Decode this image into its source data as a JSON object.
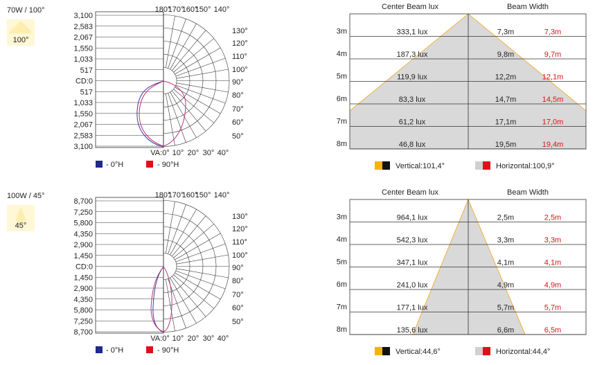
{
  "panels": [
    {
      "label": "70W / 100°",
      "badge": "100°",
      "polar": {
        "scale": [
          "3,100",
          "2,583",
          "2,067",
          "1,550",
          "1,033",
          "517",
          "CD:0",
          "517",
          "1,033",
          "1,550",
          "2,067",
          "2,583",
          "3,100"
        ],
        "top_labels": [
          "180°",
          "170°",
          "160°",
          "150°",
          "140°"
        ],
        "right_labels": [
          "130°",
          "120°",
          "110°",
          "100°",
          "90°",
          "80°",
          "70°",
          "60°",
          "50°"
        ],
        "bottom_labels": [
          "VA:0°",
          "10°",
          "20°",
          "30°",
          "40°"
        ],
        "legend": [
          "- 0°H",
          "- 90°H"
        ]
      },
      "table": {
        "headers": [
          "Center Beam lux",
          "Beam Width"
        ],
        "rows": [
          [
            "3m",
            "333,1 lux",
            "7,3m",
            "7,3m"
          ],
          [
            "4m",
            "187,3 lux",
            "9,8m",
            "9,7m"
          ],
          [
            "5m",
            "119,9 lux",
            "12,2m",
            "12,1m"
          ],
          [
            "6m",
            "83,3 lux",
            "14,7m",
            "14,5m"
          ],
          [
            "7m",
            "61,2 lux",
            "17,1m",
            "17,0m"
          ],
          [
            "8m",
            "46,8 lux",
            "19,5m",
            "19,4m"
          ]
        ],
        "legend": [
          "Vertical:101,4°",
          "Horizontal:100,9°"
        ]
      }
    },
    {
      "label": "100W / 45°",
      "badge": "45°",
      "polar": {
        "scale": [
          "8,700",
          "7,250",
          "5,800",
          "4,350",
          "2,900",
          "1,450",
          "CD:0",
          "1,450",
          "2,900",
          "4,350",
          "5,800",
          "7,250",
          "8,700"
        ],
        "top_labels": [
          "180°",
          "170°",
          "160°",
          "150°",
          "140°"
        ],
        "right_labels": [
          "130°",
          "120°",
          "110°",
          "100°",
          "90°",
          "80°",
          "70°",
          "60°",
          "50°"
        ],
        "bottom_labels": [
          "VA:0°",
          "10°",
          "20°",
          "30°",
          "40°"
        ],
        "legend": [
          "- 0°H",
          "- 90°H"
        ]
      },
      "table": {
        "headers": [
          "Center Beam lux",
          "Beam Width"
        ],
        "rows": [
          [
            "3m",
            "964,1 lux",
            "2,5m",
            "2,5m"
          ],
          [
            "4m",
            "542,3 lux",
            "3,3m",
            "3,3m"
          ],
          [
            "5m",
            "347,1 lux",
            "4,1m",
            "4,1m"
          ],
          [
            "6m",
            "241,0 lux",
            "4,9m",
            "4,9m"
          ],
          [
            "7m",
            "177,1 lux",
            "5,7m",
            "5,7m"
          ],
          [
            "8m",
            "135,6 lux",
            "6,6m",
            "6,5m"
          ]
        ],
        "legend": [
          "Vertical:44,6°",
          "Horizontal:44,4°"
        ]
      }
    }
  ]
}
